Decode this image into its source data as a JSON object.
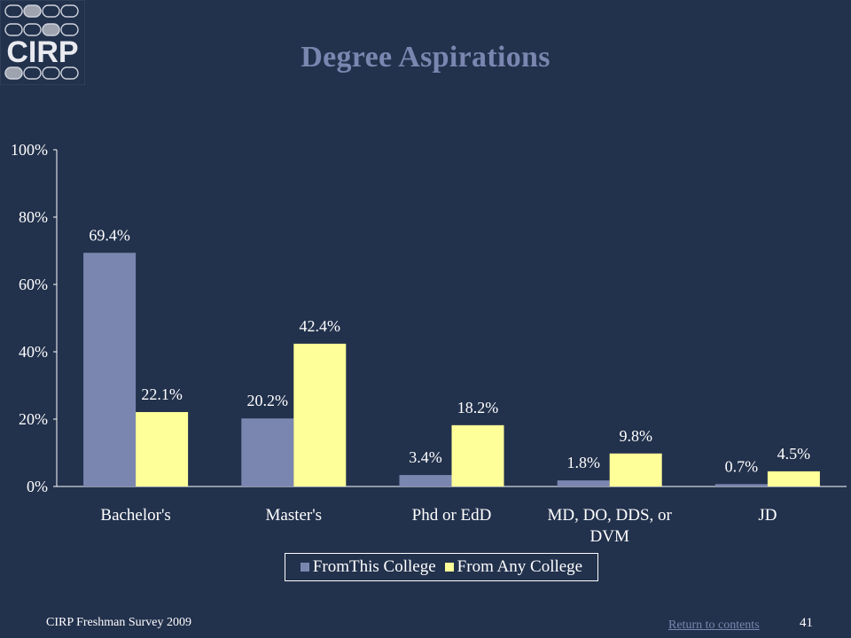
{
  "slide": {
    "title": "Degree Aspirations",
    "footer_left": "CIRP Freshman Survey 2009",
    "footer_link": "Return to contents",
    "page_number": "41"
  },
  "logo": {
    "text": "CIRP",
    "dot_color": "#cfd3dc",
    "accent_color": "#9ea3b0"
  },
  "colors": {
    "background": "#22314c",
    "series1": "#7b86b0",
    "series2": "#ffff99",
    "title": "#7b86b0"
  },
  "chart_data": {
    "type": "bar",
    "categories": [
      "Bachelor's",
      "Master's",
      "Phd or EdD",
      "MD, DO, DDS, or DVM",
      "JD"
    ],
    "category_lines": [
      [
        "Bachelor's"
      ],
      [
        "Master's"
      ],
      [
        "Phd or EdD"
      ],
      [
        "MD, DO, DDS, or",
        "DVM"
      ],
      [
        "JD"
      ]
    ],
    "series": [
      {
        "name": "FromThis College",
        "values": [
          69.4,
          20.2,
          3.4,
          1.8,
          0.7
        ],
        "labels": [
          "69.4%",
          "20.2%",
          "3.4%",
          "1.8%",
          "0.7%"
        ]
      },
      {
        "name": "From Any College",
        "values": [
          22.1,
          42.4,
          18.2,
          9.8,
          4.5
        ],
        "labels": [
          "22.1%",
          "42.4%",
          "18.2%",
          "9.8%",
          "4.5%"
        ]
      }
    ],
    "y_ticks": [
      0,
      20,
      40,
      60,
      80,
      100
    ],
    "y_tick_labels": [
      "0%",
      "20%",
      "40%",
      "60%",
      "80%",
      "100%"
    ],
    "ylim": [
      0,
      100
    ],
    "grid": false,
    "legend_position": "bottom"
  }
}
